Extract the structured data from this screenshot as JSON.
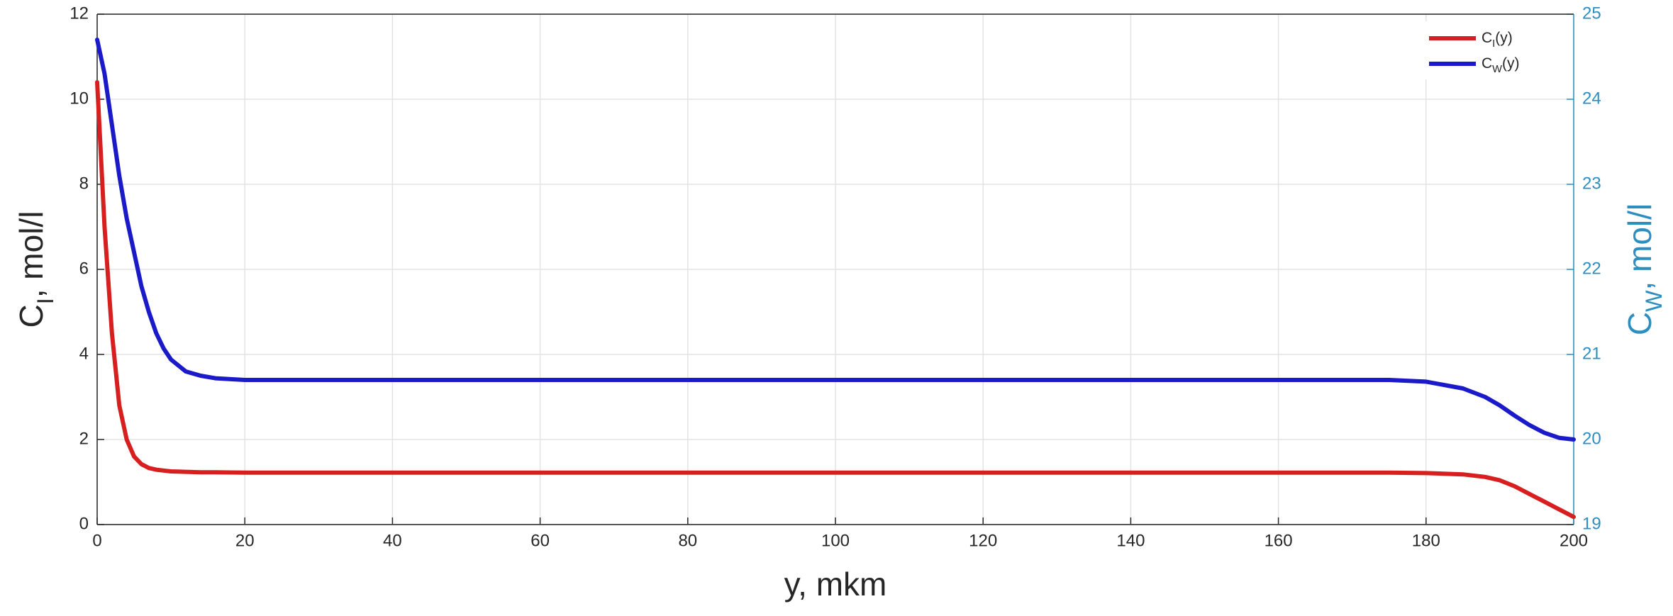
{
  "chart_data": {
    "type": "line",
    "xlabel": "y, mkm",
    "ylabel": "C_I, mol/l",
    "y2label": "C_W, mol/l",
    "x": [
      0,
      1,
      2,
      3,
      4,
      5,
      6,
      7,
      8,
      9,
      10,
      12,
      14,
      16,
      20,
      40,
      60,
      80,
      100,
      120,
      140,
      160,
      175,
      180,
      185,
      188,
      190,
      192,
      194,
      196,
      198,
      200
    ],
    "series": [
      {
        "name": "C_I(y)",
        "color": "#d71f1f",
        "values": [
          10.4,
          7.0,
          4.5,
          2.8,
          2.0,
          1.6,
          1.42,
          1.33,
          1.29,
          1.27,
          1.25,
          1.24,
          1.23,
          1.23,
          1.22,
          1.22,
          1.22,
          1.22,
          1.22,
          1.22,
          1.22,
          1.22,
          1.22,
          1.21,
          1.18,
          1.12,
          1.04,
          0.9,
          0.72,
          0.54,
          0.36,
          0.18
        ]
      },
      {
        "name": "C_W(y)",
        "color": "#1a1ac8",
        "axis": "y2",
        "values": [
          24.7,
          24.3,
          23.7,
          23.1,
          22.6,
          22.2,
          21.8,
          21.5,
          21.25,
          21.07,
          20.94,
          20.8,
          20.75,
          20.72,
          20.7,
          20.7,
          20.7,
          20.7,
          20.7,
          20.7,
          20.7,
          20.7,
          20.7,
          20.68,
          20.6,
          20.5,
          20.4,
          20.28,
          20.17,
          20.08,
          20.02,
          20.0
        ]
      }
    ],
    "xlim": [
      0,
      200
    ],
    "xticks": [
      0,
      20,
      40,
      60,
      80,
      100,
      120,
      140,
      160,
      180,
      200
    ],
    "ylim": [
      0,
      12
    ],
    "yticks": [
      0,
      2,
      4,
      6,
      8,
      10,
      12
    ],
    "y2lim": [
      19,
      25
    ],
    "y2ticks": [
      19,
      20,
      21,
      22,
      23,
      24,
      25
    ],
    "y2color": "#2c8fc0",
    "grid": true,
    "legend": "top-right"
  }
}
